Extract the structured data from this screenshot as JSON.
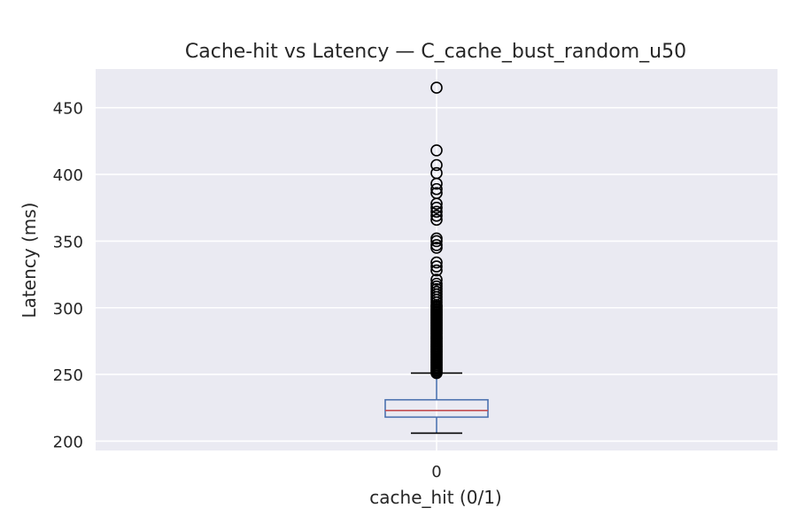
{
  "chart_data": {
    "type": "box",
    "title": "Cache-hit vs Latency — C_cache_bust_random_u50",
    "xlabel": "cache_hit (0/1)",
    "ylabel": "Latency (ms)",
    "categories": [
      "0"
    ],
    "ylim": [
      193,
      479
    ],
    "yticks": [
      200,
      250,
      300,
      350,
      400,
      450
    ],
    "grid": true,
    "boxes": [
      {
        "category": "0",
        "whisker_low": 206,
        "q1": 218,
        "median": 223,
        "q3": 231,
        "whisker_high": 251,
        "outliers": [
          251,
          252,
          253,
          254,
          255,
          256,
          257,
          258,
          259,
          260,
          261,
          262,
          263,
          264,
          265,
          266,
          267,
          268,
          269,
          270,
          271,
          272,
          273,
          274,
          275,
          276,
          277,
          278,
          279,
          280,
          281,
          282,
          283,
          284,
          285,
          286,
          287,
          288,
          289,
          290,
          291,
          292,
          293,
          294,
          295,
          296,
          297,
          298,
          299,
          300,
          301,
          302,
          304,
          306,
          308,
          310,
          312,
          314,
          316,
          318,
          321,
          328,
          331,
          334,
          345,
          347,
          350,
          352,
          366,
          369,
          372,
          375,
          378,
          386,
          389,
          393,
          401,
          407,
          418,
          465
        ]
      }
    ],
    "colors": {
      "background": "#eaeaf2",
      "grid": "#ffffff",
      "box": "#4c72b0",
      "median": "#c44e52",
      "whisker_cap": "#000000",
      "outlier": "#000000"
    }
  }
}
